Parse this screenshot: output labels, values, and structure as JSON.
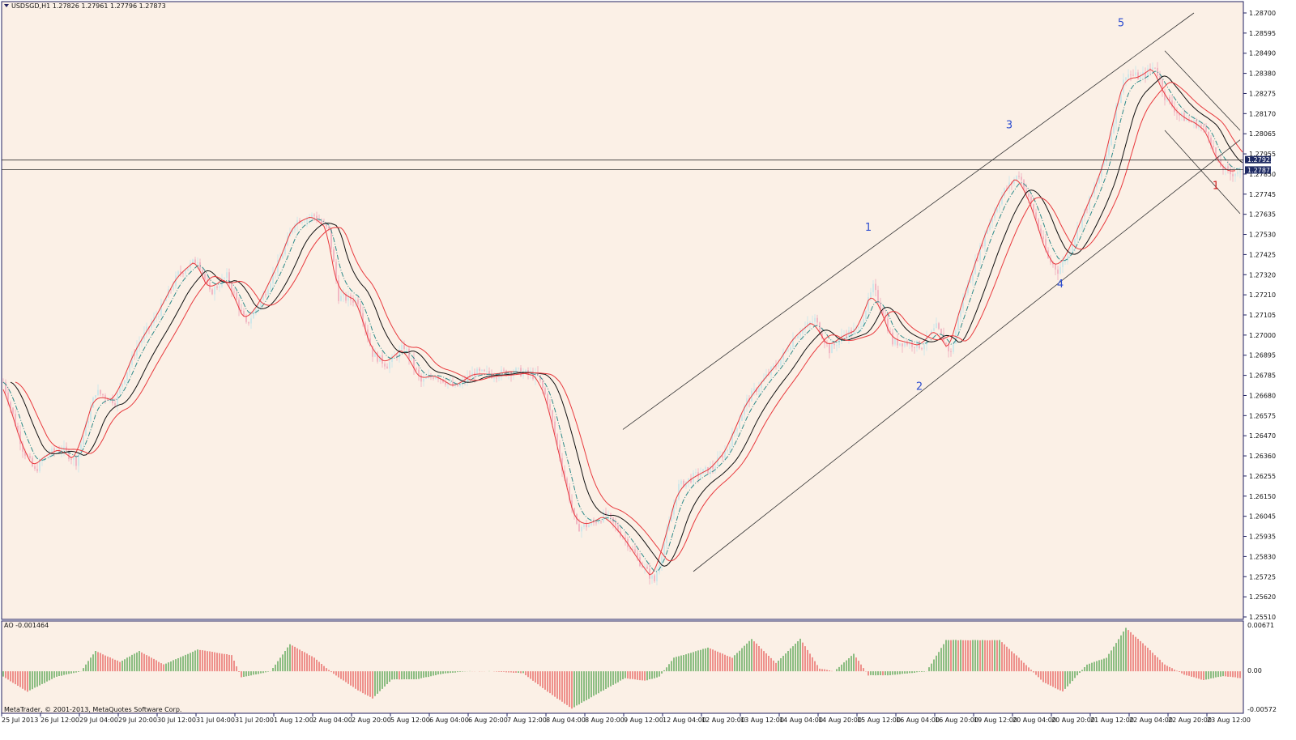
{
  "header": {
    "symbol_line": "USDSGD,H1  1.27826 1.27961 1.27796 1.27873"
  },
  "indicator": {
    "header": "AO -0.001464"
  },
  "footer": {
    "copyright": "MetaTrader, © 2001-2013, MetaQuotes Software Corp."
  },
  "colors": {
    "plot_bg": "#fbf0e6",
    "frame": "#202060",
    "candle_pink": "#f2b8c4",
    "candle_teal": "#cfe8ea",
    "line_red": "#e8393d",
    "line_dark": "#101010",
    "line_teal": "#2d8a8a",
    "ao_green": "#1e8a1e",
    "ao_red": "#e03030",
    "wave_blue": "#2f4fd0",
    "wave_red": "#d02020",
    "price_badge": "#1e2a63",
    "level_badge": "#1e2a63"
  },
  "price_axis": {
    "ticks": [
      "1.28700",
      "1.28595",
      "1.28490",
      "1.28380",
      "1.28275",
      "1.28170",
      "1.28065",
      "1.27955",
      "1.27850",
      "1.27745",
      "1.27635",
      "1.27530",
      "1.27425",
      "1.27320",
      "1.27210",
      "1.27105",
      "1.27000",
      "1.26895",
      "1.26785",
      "1.26680",
      "1.26575",
      "1.26470",
      "1.26360",
      "1.26255",
      "1.26150",
      "1.26045",
      "1.25935",
      "1.25830",
      "1.25725",
      "1.25620",
      "1.25510"
    ],
    "current_price": "1.27873",
    "level_price": "1.27923",
    "ymin": 1.2551,
    "ymax": 1.287
  },
  "ao_axis": {
    "top": "0.00671",
    "zero": "0.00",
    "bottom": "-0.00572",
    "min": -0.00572,
    "max": 0.00671
  },
  "time_axis": {
    "labels": [
      "25 Jul 2013",
      "26 Jul 12:00",
      "29 Jul 04:00",
      "29 Jul 20:00",
      "30 Jul 12:00",
      "31 Jul 04:00",
      "31 Jul 20:00",
      "1 Aug 12:00",
      "2 Aug 04:00",
      "2 Aug 20:00",
      "5 Aug 12:00",
      "6 Aug 04:00",
      "6 Aug 20:00",
      "7 Aug 12:00",
      "8 Aug 04:00",
      "8 Aug 20:00",
      "9 Aug 12:00",
      "12 Aug 04:00",
      "12 Aug 20:00",
      "13 Aug 12:00",
      "14 Aug 04:00",
      "14 Aug 20:00",
      "15 Aug 12:00",
      "16 Aug 04:00",
      "16 Aug 20:00",
      "19 Aug 12:00",
      "20 Aug 04:00",
      "20 Aug 20:00",
      "21 Aug 12:00",
      "22 Aug 04:00",
      "22 Aug 20:00",
      "23 Aug 12:00"
    ]
  },
  "wave_labels": [
    {
      "text": "1",
      "bar": 356,
      "price": 1.2755,
      "color": "blue"
    },
    {
      "text": "2",
      "bar": 377,
      "price": 1.2671,
      "color": "blue"
    },
    {
      "text": "3",
      "bar": 414,
      "price": 1.2809,
      "color": "blue"
    },
    {
      "text": "4",
      "bar": 435,
      "price": 1.2725,
      "color": "blue"
    },
    {
      "text": "5",
      "bar": 460,
      "price": 1.2863,
      "color": "blue"
    },
    {
      "text": "1",
      "bar": 499,
      "price": 1.2777,
      "color": "red"
    }
  ],
  "chart_data": {
    "type": "candlestick",
    "title": "USDSGD,H1",
    "ohlc_last": {
      "open": 1.27826,
      "high": 1.27961,
      "low": 1.27796,
      "close": 1.27873
    },
    "bars": 510,
    "anchors": [
      [
        0,
        1.2675
      ],
      [
        8,
        1.264
      ],
      [
        13,
        1.2628
      ],
      [
        18,
        1.2637
      ],
      [
        24,
        1.264
      ],
      [
        30,
        1.2633
      ],
      [
        38,
        1.267
      ],
      [
        46,
        1.2665
      ],
      [
        55,
        1.2694
      ],
      [
        64,
        1.2712
      ],
      [
        72,
        1.2732
      ],
      [
        80,
        1.274
      ],
      [
        85,
        1.2722
      ],
      [
        92,
        1.2731
      ],
      [
        100,
        1.2705
      ],
      [
        106,
        1.2718
      ],
      [
        114,
        1.274
      ],
      [
        120,
        1.276
      ],
      [
        128,
        1.2763
      ],
      [
        134,
        1.2755
      ],
      [
        138,
        1.272
      ],
      [
        146,
        1.2718
      ],
      [
        152,
        1.269
      ],
      [
        158,
        1.2684
      ],
      [
        165,
        1.2694
      ],
      [
        172,
        1.2675
      ],
      [
        178,
        1.2679
      ],
      [
        186,
        1.2672
      ],
      [
        194,
        1.268
      ],
      [
        202,
        1.2679
      ],
      [
        210,
        1.2681
      ],
      [
        220,
        1.2678
      ],
      [
        224,
        1.2665
      ],
      [
        230,
        1.263
      ],
      [
        236,
        1.2598
      ],
      [
        242,
        1.26
      ],
      [
        248,
        1.2605
      ],
      [
        256,
        1.2592
      ],
      [
        262,
        1.258
      ],
      [
        266,
        1.2573
      ],
      [
        268,
        1.257
      ],
      [
        272,
        1.259
      ],
      [
        278,
        1.262
      ],
      [
        284,
        1.2625
      ],
      [
        292,
        1.263
      ],
      [
        298,
        1.264
      ],
      [
        306,
        1.2665
      ],
      [
        314,
        1.2678
      ],
      [
        320,
        1.2687
      ],
      [
        326,
        1.27
      ],
      [
        334,
        1.2708
      ],
      [
        340,
        1.2692
      ],
      [
        346,
        1.27
      ],
      [
        352,
        1.2703
      ],
      [
        358,
        1.2725
      ],
      [
        362,
        1.2712
      ],
      [
        366,
        1.2696
      ],
      [
        372,
        1.2696
      ],
      [
        378,
        1.2694
      ],
      [
        384,
        1.2704
      ],
      [
        390,
        1.269
      ],
      [
        394,
        1.2715
      ],
      [
        400,
        1.2738
      ],
      [
        406,
        1.276
      ],
      [
        412,
        1.2776
      ],
      [
        418,
        1.2785
      ],
      [
        424,
        1.2765
      ],
      [
        430,
        1.274
      ],
      [
        434,
        1.2734
      ],
      [
        438,
        1.2742
      ],
      [
        444,
        1.2762
      ],
      [
        450,
        1.278
      ],
      [
        454,
        1.2795
      ],
      [
        458,
        1.282
      ],
      [
        462,
        1.2838
      ],
      [
        468,
        1.2836
      ],
      [
        474,
        1.2842
      ],
      [
        478,
        1.2826
      ],
      [
        484,
        1.2816
      ],
      [
        488,
        1.2813
      ],
      [
        492,
        1.2811
      ],
      [
        496,
        1.2806
      ],
      [
        500,
        1.279
      ],
      [
        505,
        1.2785
      ],
      [
        509,
        1.2787
      ]
    ],
    "ao_anchors": [
      [
        0,
        -0.0008
      ],
      [
        10,
        -0.003
      ],
      [
        22,
        -0.0008
      ],
      [
        32,
        0.0
      ],
      [
        38,
        0.003
      ],
      [
        48,
        0.0014
      ],
      [
        56,
        0.003
      ],
      [
        66,
        0.001
      ],
      [
        80,
        0.0032
      ],
      [
        94,
        0.0024
      ],
      [
        98,
        -0.0009
      ],
      [
        110,
        0.0
      ],
      [
        118,
        0.004
      ],
      [
        128,
        0.002
      ],
      [
        136,
        -0.0004
      ],
      [
        146,
        -0.0028
      ],
      [
        152,
        -0.004
      ],
      [
        160,
        -0.0012
      ],
      [
        170,
        -0.0012
      ],
      [
        180,
        -0.0004
      ],
      [
        190,
        0.0
      ],
      [
        202,
        0.0
      ],
      [
        214,
        -0.0003
      ],
      [
        224,
        -0.003
      ],
      [
        234,
        -0.0055
      ],
      [
        246,
        -0.003
      ],
      [
        256,
        -0.001
      ],
      [
        264,
        -0.0014
      ],
      [
        270,
        -0.0008
      ],
      [
        276,
        0.002
      ],
      [
        290,
        0.0035
      ],
      [
        300,
        0.002
      ],
      [
        308,
        0.0048
      ],
      [
        318,
        0.0012
      ],
      [
        328,
        0.0048
      ],
      [
        336,
        0.0004
      ],
      [
        342,
        0.0
      ],
      [
        350,
        0.0026
      ],
      [
        356,
        -0.0006
      ],
      [
        364,
        -0.0006
      ],
      [
        372,
        -0.0003
      ],
      [
        380,
        0.0
      ],
      [
        388,
        0.0046
      ],
      [
        398,
        0.0046
      ],
      [
        410,
        0.0046
      ],
      [
        418,
        0.002
      ],
      [
        428,
        -0.0016
      ],
      [
        436,
        -0.003
      ],
      [
        446,
        0.001
      ],
      [
        454,
        0.002
      ],
      [
        462,
        0.0064
      ],
      [
        470,
        0.0038
      ],
      [
        478,
        0.001
      ],
      [
        486,
        -0.0005
      ],
      [
        494,
        -0.0013
      ],
      [
        502,
        -0.0007
      ],
      [
        509,
        -0.001
      ]
    ],
    "moving_averages": [
      {
        "type": "smoothed",
        "shift": -2,
        "color": "red"
      },
      {
        "type": "smoothed",
        "shift": 0,
        "color": "teal",
        "dash": true
      },
      {
        "type": "smoothed",
        "shift": 3,
        "color": "dark"
      },
      {
        "type": "smoothed",
        "shift": 5,
        "color": "red"
      }
    ],
    "trendlines": [
      {
        "from": [
          255,
          1.265
        ],
        "to": [
          490,
          1.287
        ]
      },
      {
        "from": [
          284,
          1.2575
        ],
        "to": [
          509,
          1.2803
        ]
      },
      {
        "from": [
          478,
          1.285
        ],
        "to": [
          509,
          1.2808
        ]
      },
      {
        "from": [
          478,
          1.2808
        ],
        "to": [
          509,
          1.2764
        ]
      }
    ],
    "level": 1.27923
  }
}
